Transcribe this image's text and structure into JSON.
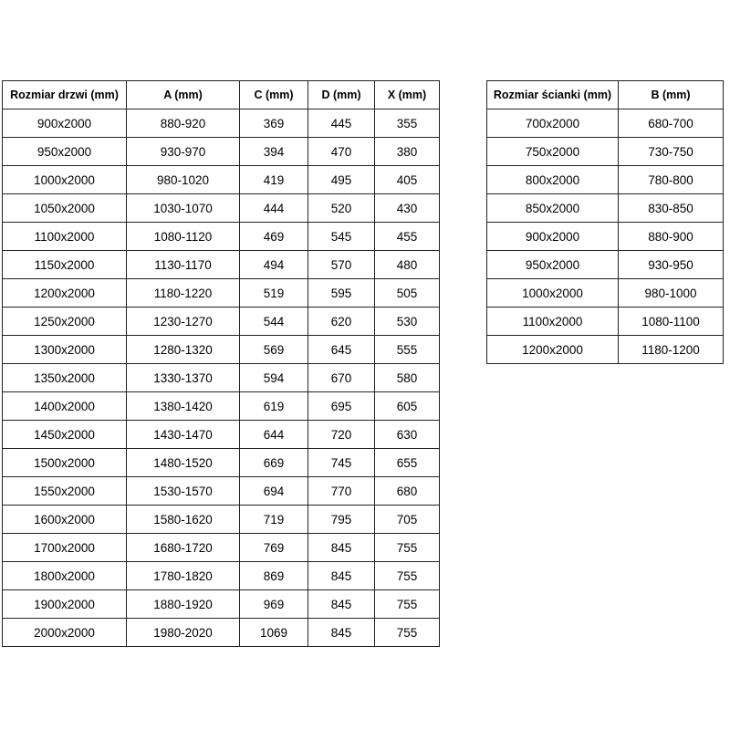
{
  "colors": {
    "background": "#ffffff",
    "border": "#222222",
    "text": "#000000"
  },
  "tables": {
    "doors": {
      "name": "door-sizes",
      "headers": [
        "Rozmiar drzwi (mm)",
        "A (mm)",
        "C (mm)",
        "D (mm)",
        "X (mm)"
      ],
      "rows": [
        [
          "900x2000",
          "880-920",
          "369",
          "445",
          "355"
        ],
        [
          "950x2000",
          "930-970",
          "394",
          "470",
          "380"
        ],
        [
          "1000x2000",
          "980-1020",
          "419",
          "495",
          "405"
        ],
        [
          "1050x2000",
          "1030-1070",
          "444",
          "520",
          "430"
        ],
        [
          "1100x2000",
          "1080-1120",
          "469",
          "545",
          "455"
        ],
        [
          "1150x2000",
          "1130-1170",
          "494",
          "570",
          "480"
        ],
        [
          "1200x2000",
          "1180-1220",
          "519",
          "595",
          "505"
        ],
        [
          "1250x2000",
          "1230-1270",
          "544",
          "620",
          "530"
        ],
        [
          "1300x2000",
          "1280-1320",
          "569",
          "645",
          "555"
        ],
        [
          "1350x2000",
          "1330-1370",
          "594",
          "670",
          "580"
        ],
        [
          "1400x2000",
          "1380-1420",
          "619",
          "695",
          "605"
        ],
        [
          "1450x2000",
          "1430-1470",
          "644",
          "720",
          "630"
        ],
        [
          "1500x2000",
          "1480-1520",
          "669",
          "745",
          "655"
        ],
        [
          "1550x2000",
          "1530-1570",
          "694",
          "770",
          "680"
        ],
        [
          "1600x2000",
          "1580-1620",
          "719",
          "795",
          "705"
        ],
        [
          "1700x2000",
          "1680-1720",
          "769",
          "845",
          "755"
        ],
        [
          "1800x2000",
          "1780-1820",
          "869",
          "845",
          "755"
        ],
        [
          "1900x2000",
          "1880-1920",
          "969",
          "845",
          "755"
        ],
        [
          "2000x2000",
          "1980-2020",
          "1069",
          "845",
          "755"
        ]
      ]
    },
    "walls": {
      "name": "wall-sizes",
      "headers": [
        "Rozmiar ścianki (mm)",
        "B (mm)"
      ],
      "rows": [
        [
          "700x2000",
          "680-700"
        ],
        [
          "750x2000",
          "730-750"
        ],
        [
          "800x2000",
          "780-800"
        ],
        [
          "850x2000",
          "830-850"
        ],
        [
          "900x2000",
          "880-900"
        ],
        [
          "950x2000",
          "930-950"
        ],
        [
          "1000x2000",
          "980-1000"
        ],
        [
          "1100x2000",
          "1080-1100"
        ],
        [
          "1200x2000",
          "1180-1200"
        ]
      ]
    }
  }
}
